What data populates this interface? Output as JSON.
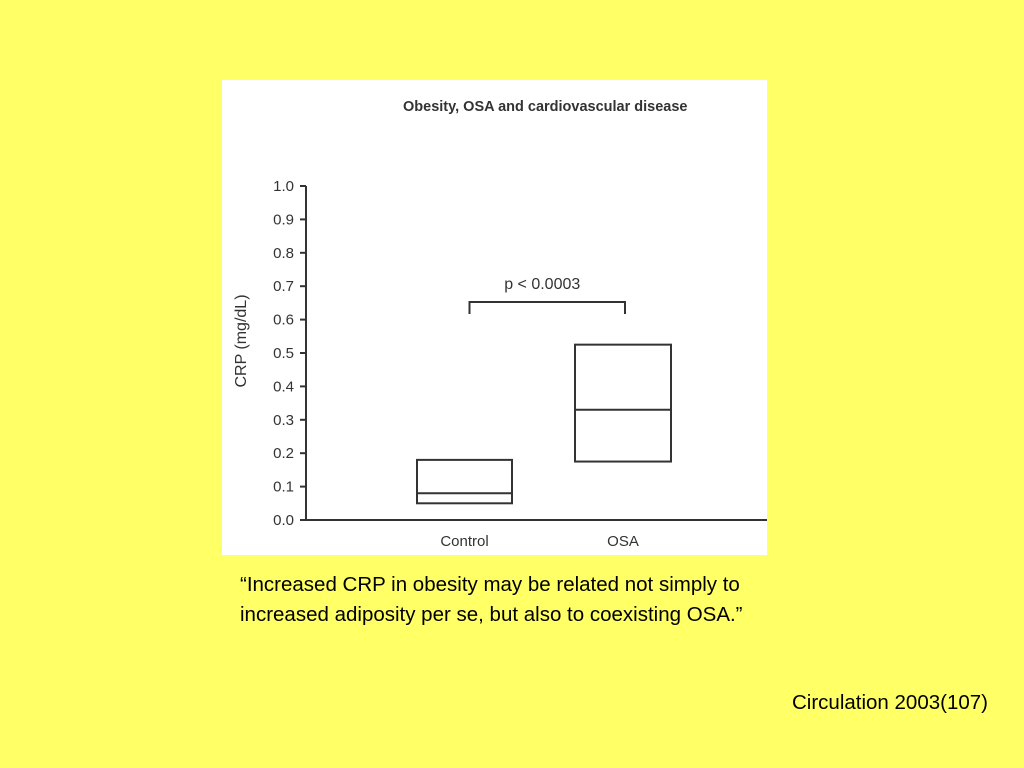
{
  "chart_data": {
    "type": "box",
    "title": "Obesity, OSA and cardiovascular disease",
    "xlabel": "",
    "ylabel": "CRP (mg/dL)",
    "ylim": [
      0.0,
      1.0
    ],
    "yticks": [
      "0.0",
      "0.1",
      "0.2",
      "0.3",
      "0.4",
      "0.5",
      "0.6",
      "0.7",
      "0.8",
      "0.9",
      "1.0"
    ],
    "categories": [
      "Control",
      "OSA"
    ],
    "boxes": [
      {
        "category": "Control",
        "q1": 0.05,
        "median": 0.08,
        "q3": 0.18
      },
      {
        "category": "OSA",
        "q1": 0.175,
        "median": 0.33,
        "q3": 0.525
      }
    ],
    "annotation": {
      "text": "p < 0.0003",
      "between": [
        "Control",
        "OSA"
      ]
    },
    "grid": false,
    "legend": "none",
    "colors": {
      "stroke": "#333333",
      "background": "#ffffff"
    }
  },
  "quote": {
    "line1": "“Increased CRP in obesity may be related not simply to",
    "line2": "increased adiposity per se, but also to coexisting OSA.”"
  },
  "citation": "Circulation 2003(107)",
  "colors": {
    "slide_background": "#ffff66",
    "text": "#000000"
  }
}
